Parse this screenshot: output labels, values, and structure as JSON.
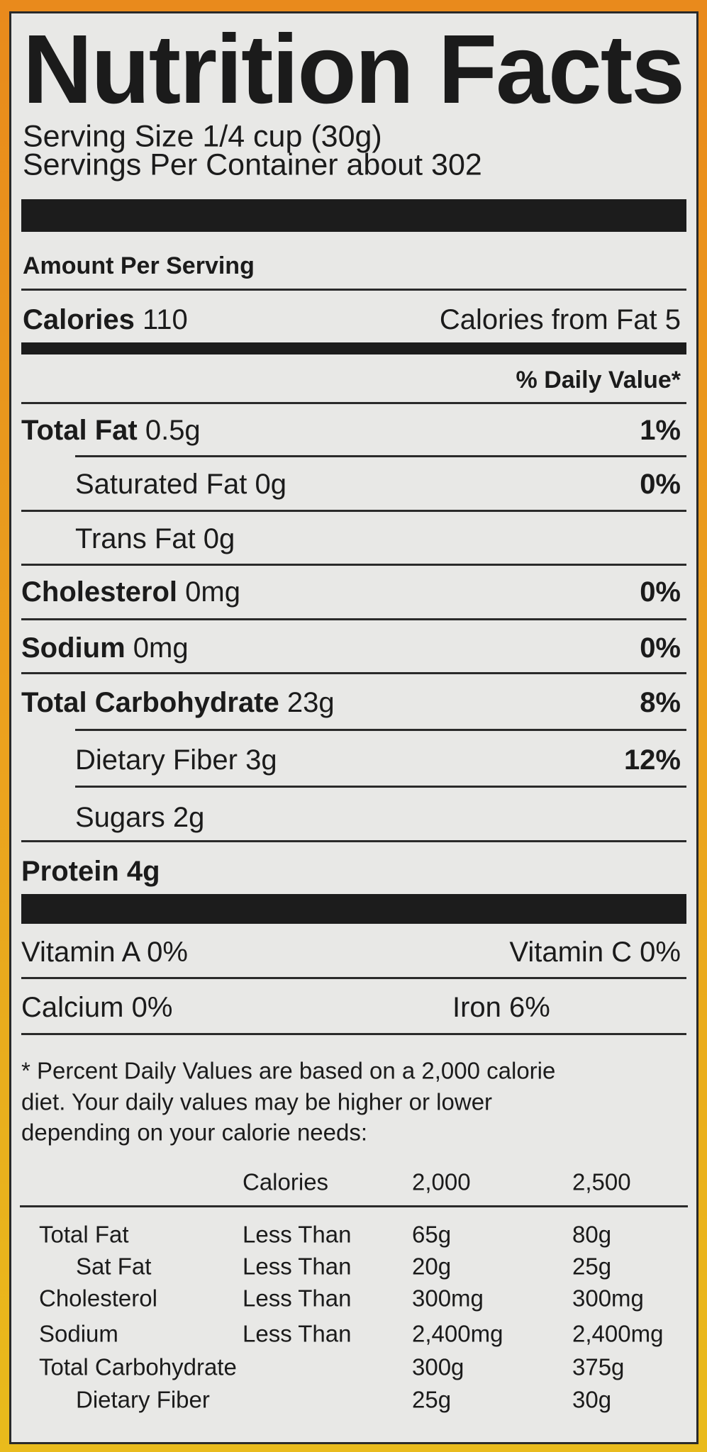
{
  "title": "Nutrition Facts",
  "serving_size": "Serving Size 1/4 cup (30g)",
  "servings_per_container": "Servings Per Container about 302",
  "amount_per_serving": "Amount Per Serving",
  "calories": {
    "label": "Calories",
    "value": "110",
    "from_fat": "Calories from Fat 5"
  },
  "daily_value_header": "% Daily Value*",
  "nutrients": [
    {
      "name": "Total Fat",
      "amount": "0.5g",
      "dv": "1%"
    },
    {
      "name": "Saturated Fat",
      "amount": "0g",
      "dv": "0%"
    },
    {
      "name": "Trans Fat",
      "amount": "0g",
      "dv": ""
    },
    {
      "name": "Cholesterol",
      "amount": "0mg",
      "dv": "0%"
    },
    {
      "name": "Sodium",
      "amount": "0mg",
      "dv": "0%"
    },
    {
      "name": "Total Carbohydrate",
      "amount": "23g",
      "dv": "8%"
    },
    {
      "name": "Dietary Fiber",
      "amount": "3g",
      "dv": "12%"
    },
    {
      "name": "Sugars",
      "amount": "2g",
      "dv": ""
    },
    {
      "name": "Protein",
      "amount": "4g",
      "dv": ""
    }
  ],
  "vitamins": [
    {
      "left": "Vitamin A 0%",
      "right": "Vitamin C 0%"
    },
    {
      "left": "Calcium 0%",
      "right": "Iron 6%"
    }
  ],
  "footnote": [
    "* Percent Daily Values are based on a 2,000 calorie",
    "diet. Your daily values may be higher or lower",
    "depending on your calorie needs:"
  ],
  "dv_table": {
    "header": [
      "",
      "Calories",
      "2,000",
      "2,500"
    ],
    "rows": [
      [
        "Total Fat",
        "Less Than",
        "65g",
        "80g"
      ],
      [
        "Sat Fat",
        "Less Than",
        "20g",
        "25g"
      ],
      [
        "Cholesterol",
        "Less Than",
        "300mg",
        "300mg"
      ],
      [
        "Sodium",
        "Less Than",
        "2,400mg",
        "2,400mg"
      ],
      [
        "Total Carbohydrate",
        "",
        "300g",
        "375g"
      ],
      [
        "Dietary Fiber",
        "",
        "25g",
        "30g"
      ]
    ]
  },
  "colors": {
    "background_top": "#e98a1c",
    "background_bottom": "#e9bb1c",
    "label": "#e8e8e6",
    "ink": "#1b1b1b"
  }
}
